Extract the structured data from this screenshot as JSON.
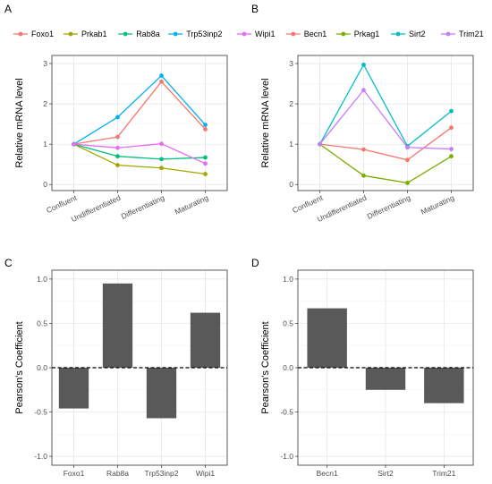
{
  "chart_data": [
    {
      "panel": "A",
      "type": "line",
      "categories": [
        "Confluent",
        "Undifferentiated",
        "Differentiating",
        "Maturating"
      ],
      "ylabel": "Relative mRNA level",
      "xlabel": "",
      "ylim": [
        -0.15,
        3.2
      ],
      "yticks": [
        0,
        1,
        2,
        3
      ],
      "legend_position": "top",
      "grid": true,
      "series": [
        {
          "name": "Foxo1",
          "color": "#F8766D",
          "values": [
            1.0,
            1.18,
            2.55,
            1.37
          ]
        },
        {
          "name": "Prkab1",
          "color": "#A3A500",
          "values": [
            1.0,
            0.48,
            0.41,
            0.26
          ]
        },
        {
          "name": "Rab8a",
          "color": "#00BF7D",
          "values": [
            1.0,
            0.7,
            0.63,
            0.67
          ]
        },
        {
          "name": "Trp53inp2",
          "color": "#00B0F6",
          "values": [
            1.0,
            1.67,
            2.7,
            1.48
          ]
        },
        {
          "name": "Wipi1",
          "color": "#E76BF3",
          "values": [
            1.0,
            0.91,
            1.01,
            0.52
          ]
        }
      ]
    },
    {
      "panel": "B",
      "type": "line",
      "categories": [
        "Confluent",
        "Undifferentiated",
        "Differentiating",
        "Maturating"
      ],
      "ylabel": "Relative mRNA level",
      "xlabel": "",
      "ylim": [
        -0.15,
        3.2
      ],
      "yticks": [
        0,
        1,
        2,
        3
      ],
      "legend_position": "top",
      "grid": true,
      "series": [
        {
          "name": "Becn1",
          "color": "#F8766D",
          "values": [
            1.0,
            0.87,
            0.61,
            1.41
          ]
        },
        {
          "name": "Prkag1",
          "color": "#7CAE00",
          "values": [
            1.0,
            0.22,
            0.04,
            0.7
          ]
        },
        {
          "name": "Sirt2",
          "color": "#00BFC4",
          "values": [
            1.0,
            2.97,
            0.95,
            1.82
          ]
        },
        {
          "name": "Trim21",
          "color": "#C77CFF",
          "values": [
            1.0,
            2.34,
            0.92,
            0.88
          ]
        }
      ]
    },
    {
      "panel": "C",
      "type": "bar",
      "categories": [
        "Foxo1",
        "Rab8a",
        "Trp53inp2",
        "Wipi1"
      ],
      "values": [
        -0.46,
        0.95,
        -0.57,
        0.62
      ],
      "ylabel": "Pearson's Coefficient",
      "xlabel": "",
      "ylim": [
        -1.1,
        1.1
      ],
      "yticks": [
        -1.0,
        -0.5,
        0.0,
        0.5,
        1.0
      ],
      "bar_color": "#595959",
      "reference_line": 0,
      "grid": true
    },
    {
      "panel": "D",
      "type": "bar",
      "categories": [
        "Becn1",
        "Sirt2",
        "Trim21"
      ],
      "values": [
        0.67,
        -0.25,
        -0.4
      ],
      "ylabel": "Pearson's Coefficient",
      "xlabel": "",
      "ylim": [
        -1.1,
        1.1
      ],
      "yticks": [
        -1.0,
        -0.5,
        0.0,
        0.5,
        1.0
      ],
      "bar_color": "#595959",
      "reference_line": 0,
      "grid": true
    }
  ]
}
